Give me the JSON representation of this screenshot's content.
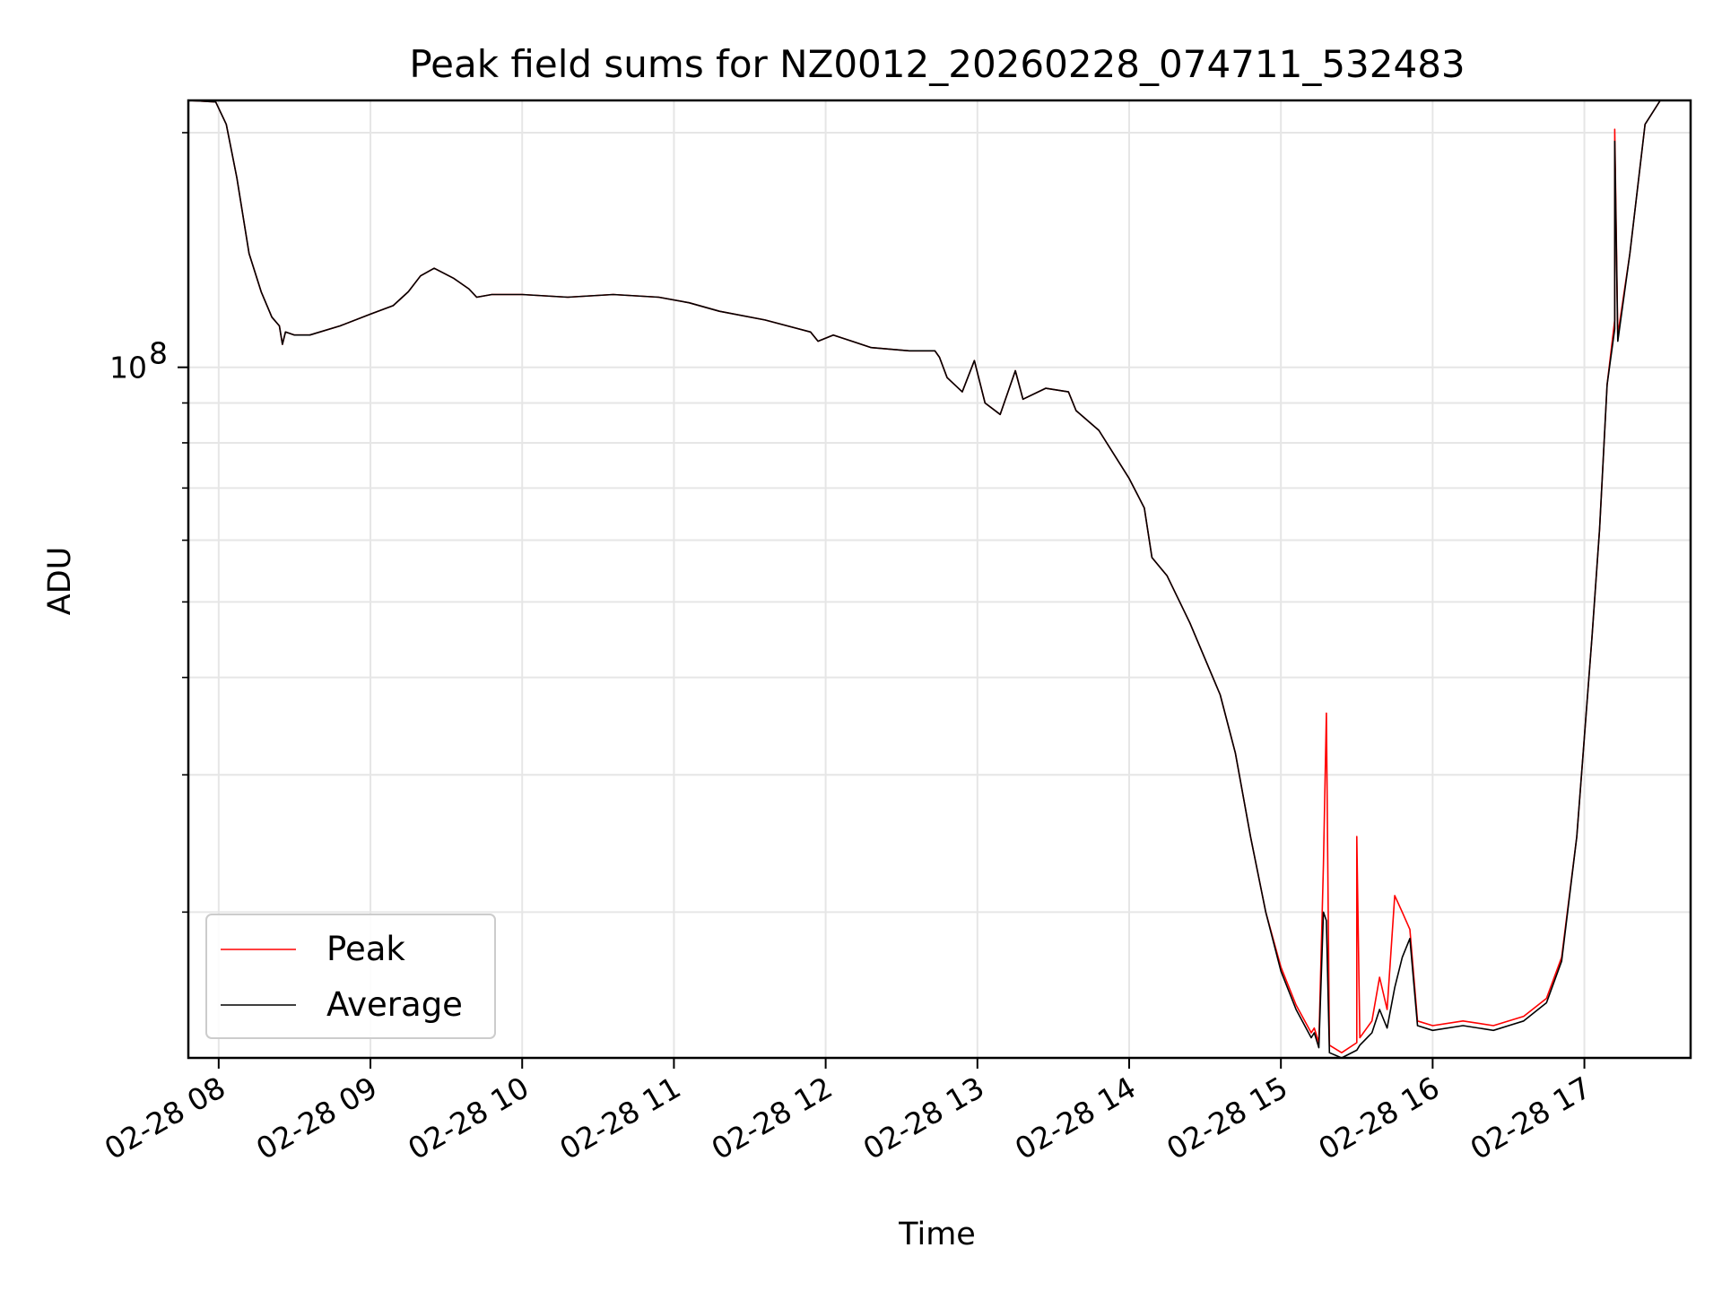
{
  "chart_data": {
    "type": "line",
    "title": "Peak field sums for NZ0012_20260228_074711_532483",
    "xlabel": "Time",
    "ylabel": "ADU",
    "yscale": "log",
    "ylim": [
      13000000,
      220000000
    ],
    "xlim": [
      7.8,
      17.7
    ],
    "x_ticks": [
      {
        "value": 8,
        "label": "02-28 08"
      },
      {
        "value": 9,
        "label": "02-28 09"
      },
      {
        "value": 10,
        "label": "02-28 10"
      },
      {
        "value": 11,
        "label": "02-28 11"
      },
      {
        "value": 12,
        "label": "02-28 12"
      },
      {
        "value": 13,
        "label": "02-28 13"
      },
      {
        "value": 14,
        "label": "02-28 14"
      },
      {
        "value": 15,
        "label": "02-28 15"
      },
      {
        "value": 16,
        "label": "02-28 16"
      },
      {
        "value": 17,
        "label": "02-28 17"
      }
    ],
    "y_major_ticks": [
      {
        "value": 100000000,
        "label_base": "10",
        "label_exp": "8"
      }
    ],
    "y_minor_ticks": [
      20000000,
      30000000,
      40000000,
      50000000,
      60000000,
      70000000,
      80000000,
      90000000,
      200000000
    ],
    "grid": true,
    "legend": {
      "position": "lower-left",
      "entries": [
        "Peak",
        "Average"
      ]
    },
    "series": [
      {
        "name": "Peak",
        "color": "#ff0000",
        "points": [
          [
            7.8,
            220000000
          ],
          [
            7.98,
            219000000
          ],
          [
            8.05,
            205000000
          ],
          [
            8.12,
            175000000
          ],
          [
            8.2,
            140000000
          ],
          [
            8.28,
            125000000
          ],
          [
            8.35,
            116000000
          ],
          [
            8.4,
            113000000
          ],
          [
            8.42,
            107000000
          ],
          [
            8.44,
            111000000
          ],
          [
            8.5,
            110000000
          ],
          [
            8.6,
            110000000
          ],
          [
            8.8,
            113000000
          ],
          [
            9.0,
            117000000
          ],
          [
            9.15,
            120000000
          ],
          [
            9.25,
            125000000
          ],
          [
            9.33,
            131000000
          ],
          [
            9.42,
            134000000
          ],
          [
            9.55,
            130000000
          ],
          [
            9.65,
            126000000
          ],
          [
            9.7,
            123000000
          ],
          [
            9.8,
            124000000
          ],
          [
            10.0,
            124000000
          ],
          [
            10.3,
            123000000
          ],
          [
            10.6,
            124000000
          ],
          [
            10.9,
            123000000
          ],
          [
            11.1,
            121000000
          ],
          [
            11.3,
            118000000
          ],
          [
            11.6,
            115000000
          ],
          [
            11.9,
            111000000
          ],
          [
            11.95,
            108000000
          ],
          [
            12.05,
            110000000
          ],
          [
            12.3,
            106000000
          ],
          [
            12.55,
            105000000
          ],
          [
            12.72,
            105000000
          ],
          [
            12.75,
            103000000
          ],
          [
            12.8,
            97000000
          ],
          [
            12.9,
            93000000
          ],
          [
            12.98,
            102000000
          ],
          [
            13.05,
            90000000
          ],
          [
            13.15,
            87000000
          ],
          [
            13.25,
            99000000
          ],
          [
            13.3,
            91000000
          ],
          [
            13.45,
            94000000
          ],
          [
            13.6,
            93000000
          ],
          [
            13.65,
            88000000
          ],
          [
            13.8,
            83000000
          ],
          [
            14.0,
            72000000
          ],
          [
            14.1,
            66000000
          ],
          [
            14.15,
            57000000
          ],
          [
            14.25,
            54000000
          ],
          [
            14.4,
            47000000
          ],
          [
            14.6,
            38000000
          ],
          [
            14.7,
            32000000
          ],
          [
            14.8,
            25000000
          ],
          [
            14.9,
            20000000
          ],
          [
            15.0,
            17000000
          ],
          [
            15.1,
            15200000
          ],
          [
            15.2,
            14000000
          ],
          [
            15.22,
            14200000
          ],
          [
            15.25,
            13600000
          ],
          [
            15.28,
            23000000
          ],
          [
            15.3,
            36000000
          ],
          [
            15.32,
            13500000
          ],
          [
            15.4,
            13200000
          ],
          [
            15.5,
            13600000
          ],
          [
            15.5,
            25000000
          ],
          [
            15.52,
            13800000
          ],
          [
            15.6,
            14500000
          ],
          [
            15.65,
            16500000
          ],
          [
            15.7,
            15000000
          ],
          [
            15.75,
            21000000
          ],
          [
            15.8,
            20000000
          ],
          [
            15.85,
            19000000
          ],
          [
            15.9,
            14500000
          ],
          [
            16.0,
            14300000
          ],
          [
            16.2,
            14500000
          ],
          [
            16.4,
            14300000
          ],
          [
            16.6,
            14700000
          ],
          [
            16.75,
            15500000
          ],
          [
            16.85,
            17500000
          ],
          [
            16.95,
            25000000
          ],
          [
            17.05,
            45000000
          ],
          [
            17.1,
            62000000
          ],
          [
            17.15,
            95000000
          ],
          [
            17.2,
            115000000
          ],
          [
            17.2,
            202000000
          ],
          [
            17.22,
            110000000
          ],
          [
            17.3,
            140000000
          ],
          [
            17.4,
            205000000
          ],
          [
            17.5,
            220000000
          ],
          [
            17.7,
            220000000
          ]
        ]
      },
      {
        "name": "Average",
        "color": "#000000",
        "points": [
          [
            7.8,
            220000000
          ],
          [
            7.98,
            219000000
          ],
          [
            8.05,
            205000000
          ],
          [
            8.12,
            175000000
          ],
          [
            8.2,
            140000000
          ],
          [
            8.28,
            125000000
          ],
          [
            8.35,
            116000000
          ],
          [
            8.4,
            113000000
          ],
          [
            8.42,
            107000000
          ],
          [
            8.44,
            111000000
          ],
          [
            8.5,
            110000000
          ],
          [
            8.6,
            110000000
          ],
          [
            8.8,
            113000000
          ],
          [
            9.0,
            117000000
          ],
          [
            9.15,
            120000000
          ],
          [
            9.25,
            125000000
          ],
          [
            9.33,
            131000000
          ],
          [
            9.42,
            134000000
          ],
          [
            9.55,
            130000000
          ],
          [
            9.65,
            126000000
          ],
          [
            9.7,
            123000000
          ],
          [
            9.8,
            124000000
          ],
          [
            10.0,
            124000000
          ],
          [
            10.3,
            123000000
          ],
          [
            10.6,
            124000000
          ],
          [
            10.9,
            123000000
          ],
          [
            11.1,
            121000000
          ],
          [
            11.3,
            118000000
          ],
          [
            11.6,
            115000000
          ],
          [
            11.9,
            111000000
          ],
          [
            11.95,
            108000000
          ],
          [
            12.05,
            110000000
          ],
          [
            12.3,
            106000000
          ],
          [
            12.55,
            105000000
          ],
          [
            12.72,
            105000000
          ],
          [
            12.75,
            103000000
          ],
          [
            12.8,
            97000000
          ],
          [
            12.9,
            93000000
          ],
          [
            12.98,
            102000000
          ],
          [
            13.05,
            90000000
          ],
          [
            13.15,
            87000000
          ],
          [
            13.25,
            99000000
          ],
          [
            13.3,
            91000000
          ],
          [
            13.45,
            94000000
          ],
          [
            13.6,
            93000000
          ],
          [
            13.65,
            88000000
          ],
          [
            13.8,
            83000000
          ],
          [
            14.0,
            72000000
          ],
          [
            14.1,
            66000000
          ],
          [
            14.15,
            57000000
          ],
          [
            14.25,
            54000000
          ],
          [
            14.4,
            47000000
          ],
          [
            14.6,
            38000000
          ],
          [
            14.7,
            32000000
          ],
          [
            14.8,
            25000000
          ],
          [
            14.9,
            20000000
          ],
          [
            15.0,
            16800000
          ],
          [
            15.1,
            15000000
          ],
          [
            15.2,
            13800000
          ],
          [
            15.22,
            14000000
          ],
          [
            15.25,
            13400000
          ],
          [
            15.28,
            20000000
          ],
          [
            15.3,
            19500000
          ],
          [
            15.32,
            13200000
          ],
          [
            15.4,
            13000000
          ],
          [
            15.5,
            13300000
          ],
          [
            15.52,
            13500000
          ],
          [
            15.6,
            14000000
          ],
          [
            15.65,
            15000000
          ],
          [
            15.7,
            14200000
          ],
          [
            15.75,
            16000000
          ],
          [
            15.8,
            17500000
          ],
          [
            15.85,
            18500000
          ],
          [
            15.9,
            14300000
          ],
          [
            16.0,
            14100000
          ],
          [
            16.2,
            14300000
          ],
          [
            16.4,
            14100000
          ],
          [
            16.6,
            14500000
          ],
          [
            16.75,
            15300000
          ],
          [
            16.85,
            17300000
          ],
          [
            16.95,
            25000000
          ],
          [
            17.05,
            45000000
          ],
          [
            17.1,
            62000000
          ],
          [
            17.15,
            95000000
          ],
          [
            17.2,
            112000000
          ],
          [
            17.2,
            195000000
          ],
          [
            17.22,
            108000000
          ],
          [
            17.3,
            140000000
          ],
          [
            17.4,
            205000000
          ],
          [
            17.5,
            220000000
          ],
          [
            17.7,
            220000000
          ]
        ]
      }
    ]
  }
}
